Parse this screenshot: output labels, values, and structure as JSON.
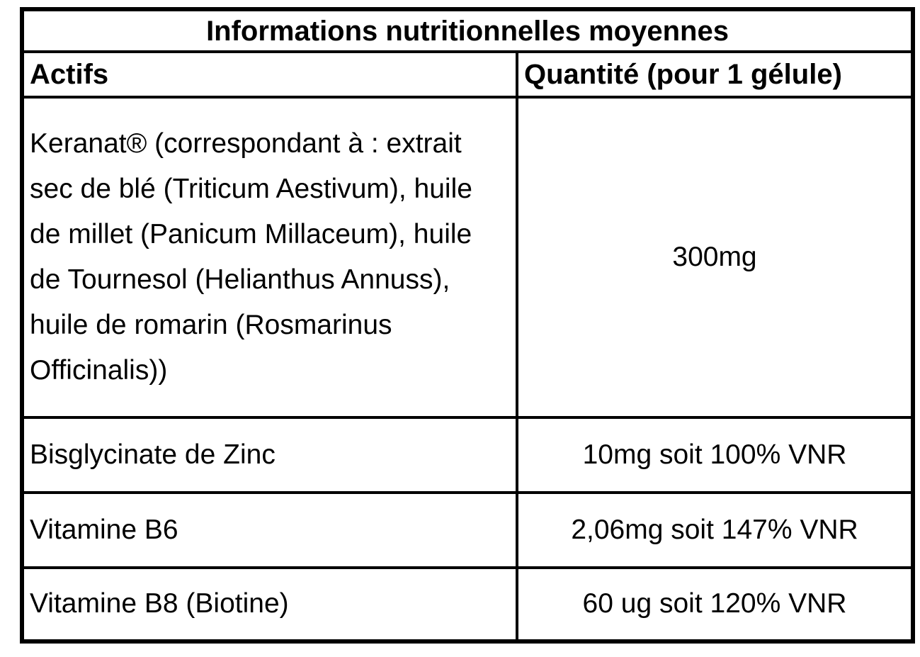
{
  "table": {
    "title": "Informations nutritionnelles moyennes",
    "headers": {
      "actifs": "Actifs",
      "quantite": "Quantité (pour 1 gélule)"
    },
    "rows": [
      {
        "actif": "Keranat® (correspondant à : extrait sec de blé (Triticum Aestivum), huile de millet (Panicum Millaceum), huile de Tournesol (Helianthus Annuss), huile de romarin (Rosmarinus Officinalis))",
        "quantite": "300mg"
      },
      {
        "actif": "Bisglycinate de Zinc",
        "quantite": "10mg soit 100% VNR"
      },
      {
        "actif": "Vitamine B6",
        "quantite": "2,06mg soit 147% VNR"
      },
      {
        "actif": "Vitamine B8 (Biotine)",
        "quantite": "60 ug soit 120% VNR"
      }
    ],
    "colors": {
      "border": "#000000",
      "text": "#000000",
      "background": "#ffffff"
    }
  }
}
